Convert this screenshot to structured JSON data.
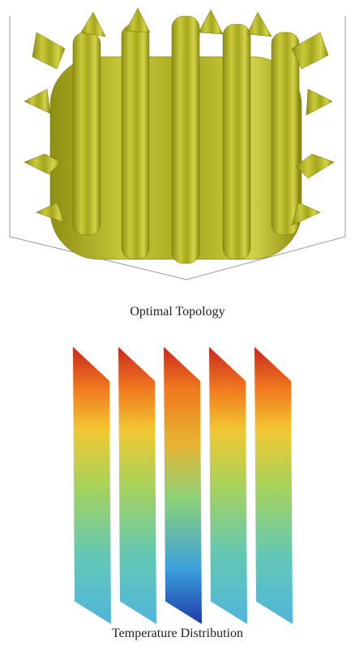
{
  "panels": [
    {
      "caption": "Optimal Topology"
    },
    {
      "caption": "Temperature Distribution"
    }
  ]
}
